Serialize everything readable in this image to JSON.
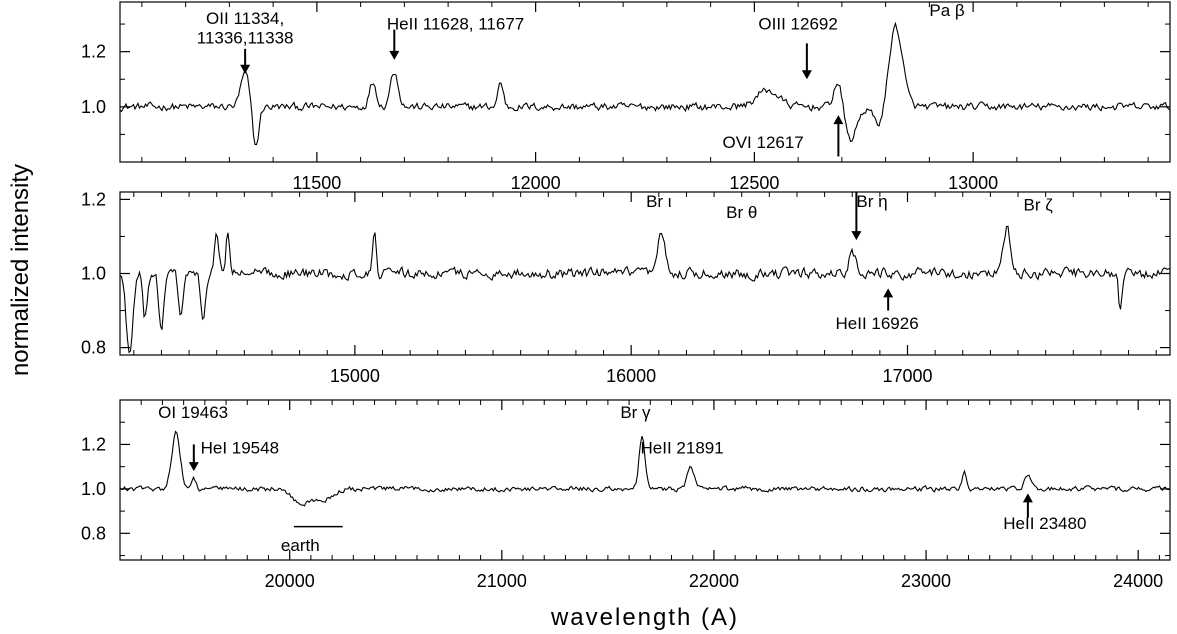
{
  "chart_data": {
    "type": "line",
    "ylabel": "normalized intensity",
    "xlabel": "wavelength (A)",
    "panels": [
      {
        "name": "",
        "xlim": [
          11050,
          13450
        ],
        "ylim": [
          0.8,
          1.38
        ],
        "xticks": [
          11500,
          12000,
          12500,
          13000
        ],
        "yticks": [
          1.0,
          1.2
        ],
        "ytick_labels": [
          "1.0",
          "1.2"
        ],
        "baseline": 1.0,
        "noise": 0.022,
        "lines": [
          {
            "center": 11336,
            "amp": 0.12,
            "width": 10
          },
          {
            "center": 11360,
            "amp": -0.15,
            "width": 7
          },
          {
            "center": 11628,
            "amp": 0.09,
            "width": 8
          },
          {
            "center": 11677,
            "amp": 0.13,
            "width": 9
          },
          {
            "center": 11920,
            "amp": 0.09,
            "width": 6
          },
          {
            "center": 12530,
            "amp": 0.06,
            "width": 25
          },
          {
            "center": 12692,
            "amp": 0.1,
            "width": 10
          },
          {
            "center": 12720,
            "amp": -0.12,
            "width": 14
          },
          {
            "center": 12790,
            "amp": -0.08,
            "width": 15
          },
          {
            "center": 12822,
            "amp": 0.3,
            "width": 16
          }
        ],
        "labels": [
          {
            "text": "OII 11334,",
            "x": 11336,
            "y": 1.3,
            "anchor": "middle"
          },
          {
            "text": "11336,11338",
            "x": 11336,
            "y": 1.23,
            "anchor": "middle"
          },
          {
            "text": "HeII 11628, 11677",
            "x": 11660,
            "y": 1.28,
            "anchor": "start"
          },
          {
            "text": "OIII 12692",
            "x": 12600,
            "y": 1.28,
            "anchor": "middle"
          },
          {
            "text": "Pa β",
            "x": 12900,
            "y": 1.33,
            "anchor": "start"
          },
          {
            "text": "OVI 12617",
            "x": 12520,
            "y": 0.85,
            "anchor": "middle"
          }
        ],
        "arrows": [
          {
            "x": 11336,
            "from": 1.21,
            "to": 1.12
          },
          {
            "x": 11677,
            "from": 1.28,
            "to": 1.17
          },
          {
            "x": 12620,
            "from": 1.23,
            "to": 1.1
          },
          {
            "x": 12692,
            "from": 0.82,
            "to": 0.97
          }
        ],
        "underlines": []
      },
      {
        "name": "",
        "xlim": [
          14150,
          17950
        ],
        "ylim": [
          0.78,
          1.22
        ],
        "xticks": [
          15000,
          16000,
          17000
        ],
        "yticks": [
          0.8,
          1.0,
          1.2
        ],
        "ytick_labels": [
          "0.8",
          "1.0",
          "1.2"
        ],
        "baseline": 1.0,
        "noise": 0.022,
        "lines": [
          {
            "center": 14185,
            "amp": -0.22,
            "width": 12
          },
          {
            "center": 14240,
            "amp": -0.12,
            "width": 8
          },
          {
            "center": 14300,
            "amp": -0.15,
            "width": 9
          },
          {
            "center": 14370,
            "amp": -0.12,
            "width": 8
          },
          {
            "center": 14450,
            "amp": -0.14,
            "width": 8
          },
          {
            "center": 14500,
            "amp": 0.1,
            "width": 8
          },
          {
            "center": 14540,
            "amp": 0.12,
            "width": 6
          },
          {
            "center": 15070,
            "amp": 0.12,
            "width": 6
          },
          {
            "center": 16110,
            "amp": 0.11,
            "width": 12
          },
          {
            "center": 16800,
            "amp": 0.06,
            "width": 12
          },
          {
            "center": 17360,
            "amp": 0.12,
            "width": 14
          },
          {
            "center": 17770,
            "amp": -0.11,
            "width": 6
          }
        ],
        "labels": [
          {
            "text": "Br ι",
            "x": 16100,
            "y": 1.18,
            "anchor": "middle"
          },
          {
            "text": "Br θ",
            "x": 16400,
            "y": 1.15,
            "anchor": "middle"
          },
          {
            "text": "Br η",
            "x": 16815,
            "y": 1.18,
            "anchor": "start"
          },
          {
            "text": "Br ζ",
            "x": 17420,
            "y": 1.17,
            "anchor": "start"
          },
          {
            "text": "HeII 16926",
            "x": 16890,
            "y": 0.85,
            "anchor": "middle"
          }
        ],
        "arrows": [
          {
            "x": 16815,
            "from": 1.22,
            "to": 1.09
          },
          {
            "x": 16930,
            "from": 0.9,
            "to": 0.96
          }
        ],
        "underlines": []
      },
      {
        "name": "",
        "xlim": [
          19200,
          24150
        ],
        "ylim": [
          0.68,
          1.4
        ],
        "xticks": [
          20000,
          21000,
          22000,
          23000,
          24000
        ],
        "yticks": [
          0.8,
          1.0,
          1.2
        ],
        "ytick_labels": [
          "0.8",
          "1.0",
          "1.2"
        ],
        "baseline": 1.0,
        "noise": 0.018,
        "lines": [
          {
            "center": 19463,
            "amp": 0.25,
            "width": 20
          },
          {
            "center": 19548,
            "amp": 0.05,
            "width": 10
          },
          {
            "center": 20050,
            "amp": -0.06,
            "width": 40
          },
          {
            "center": 20150,
            "amp": -0.05,
            "width": 50
          },
          {
            "center": 21661,
            "amp": 0.23,
            "width": 14
          },
          {
            "center": 21891,
            "amp": 0.09,
            "width": 18
          },
          {
            "center": 23180,
            "amp": 0.08,
            "width": 10
          },
          {
            "center": 23480,
            "amp": 0.06,
            "width": 14
          }
        ],
        "labels": [
          {
            "text": "OI 19463",
            "x": 19380,
            "y": 1.32,
            "anchor": "start"
          },
          {
            "text": "HeI 19548",
            "x": 19580,
            "y": 1.16,
            "anchor": "start"
          },
          {
            "text": "Br γ",
            "x": 21630,
            "y": 1.32,
            "anchor": "middle"
          },
          {
            "text": "HeII 21891",
            "x": 21850,
            "y": 1.16,
            "anchor": "middle"
          },
          {
            "text": "earth",
            "x": 20050,
            "y": 0.72,
            "anchor": "middle"
          },
          {
            "text": "HeII 23480",
            "x": 23560,
            "y": 0.82,
            "anchor": "middle"
          }
        ],
        "arrows": [
          {
            "x": 19548,
            "from": 1.2,
            "to": 1.08
          },
          {
            "x": 23480,
            "from": 0.87,
            "to": 0.98
          }
        ],
        "underlines": [
          {
            "x1": 20020,
            "x2": 20250,
            "y": 0.83
          }
        ]
      }
    ]
  }
}
